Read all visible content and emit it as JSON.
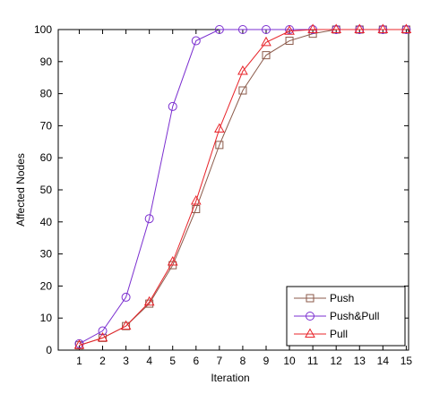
{
  "chart_data": {
    "type": "line",
    "xlabel": "Iteration",
    "ylabel": "Affected Nodes",
    "xlim": [
      0.1,
      15.1
    ],
    "ylim": [
      0,
      100
    ],
    "xticks": [
      1,
      2,
      3,
      4,
      5,
      6,
      7,
      8,
      9,
      10,
      11,
      12,
      13,
      14,
      15
    ],
    "yticks": [
      0,
      10,
      20,
      30,
      40,
      50,
      60,
      70,
      80,
      90,
      100
    ],
    "grid": false,
    "legend_position": "bottom-right",
    "x": [
      1,
      2,
      3,
      4,
      5,
      6,
      7,
      8,
      9,
      10,
      11,
      12,
      13,
      14,
      15
    ],
    "series": [
      {
        "name": "Push",
        "color": "#8b5a4a",
        "marker": "square",
        "values": [
          1.5,
          3.8,
          7.5,
          14.5,
          26.5,
          44,
          64,
          81,
          92,
          96.5,
          98.7,
          100,
          100,
          100,
          100
        ]
      },
      {
        "name": "Push&Pull",
        "color": "#7b2fd0",
        "marker": "circle",
        "values": [
          2,
          6,
          16.5,
          41,
          76,
          96.5,
          100,
          100,
          100,
          100,
          100,
          100,
          100,
          100,
          100
        ]
      },
      {
        "name": "Pull",
        "color": "#e8242a",
        "marker": "triangle",
        "values": [
          1.5,
          3.8,
          7.5,
          15,
          27.5,
          46.5,
          69,
          87,
          96,
          99.5,
          100,
          100,
          100,
          100,
          100
        ]
      }
    ]
  }
}
